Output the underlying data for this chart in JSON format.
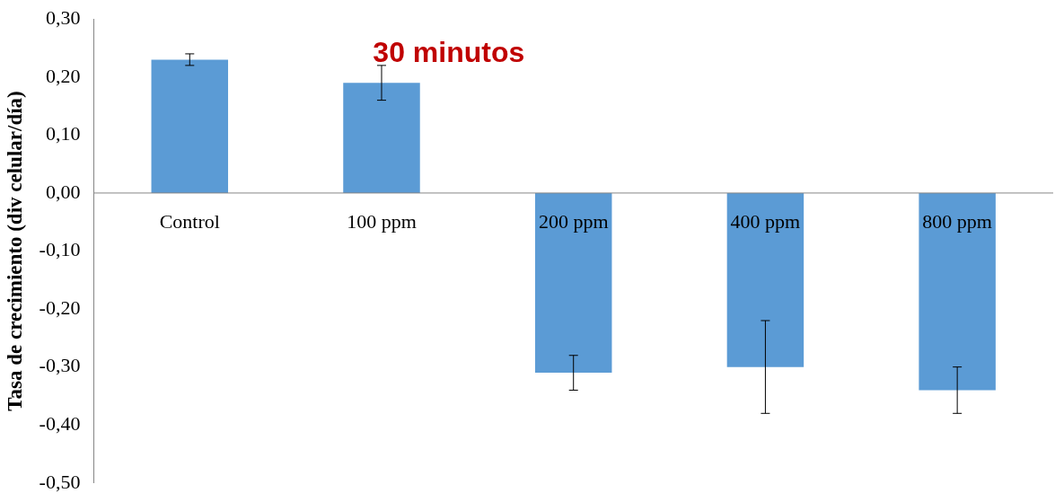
{
  "chart_data": {
    "type": "bar",
    "title": "30 minutos",
    "ylabel": "Tasa de crecimiento (div celular/día)",
    "categories": [
      "Control",
      "100 ppm",
      "200 ppm",
      "400 ppm",
      "800 ppm"
    ],
    "values": [
      0.23,
      0.19,
      -0.31,
      -0.3,
      -0.34
    ],
    "errors": [
      0.01,
      0.03,
      0.03,
      0.08,
      0.04
    ],
    "color": "#5b9bd5",
    "ylim": [
      -0.5,
      0.3
    ],
    "yticks": [
      {
        "value": -0.5,
        "label": "-0,50"
      },
      {
        "value": -0.4,
        "label": "-0,40"
      },
      {
        "value": -0.3,
        "label": "-0,30"
      },
      {
        "value": -0.2,
        "label": "-0,20"
      },
      {
        "value": -0.1,
        "label": "-0,10"
      },
      {
        "value": 0,
        "label": "0,00"
      },
      {
        "value": 0.1,
        "label": "0,10"
      },
      {
        "value": 0.2,
        "label": "0,20"
      },
      {
        "value": 0.3,
        "label": "0,30"
      }
    ],
    "grid": false,
    "legend": false
  }
}
